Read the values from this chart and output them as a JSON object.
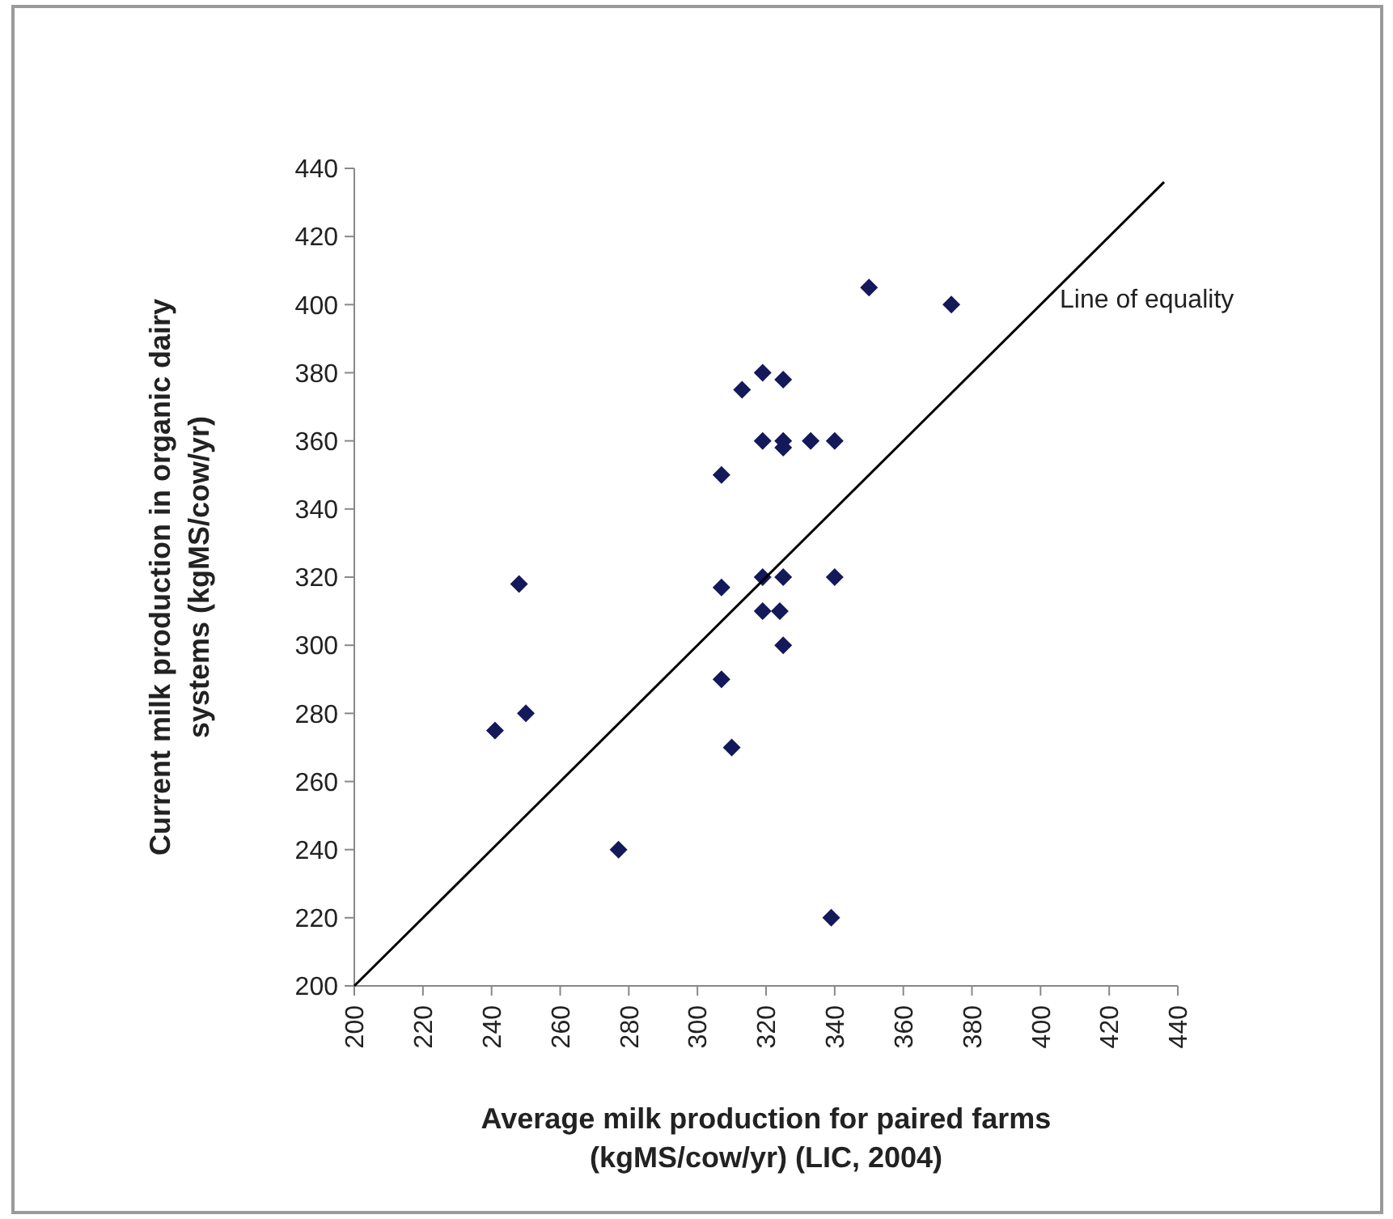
{
  "chart_data": {
    "type": "scatter",
    "xlabel": "Average milk production for paired farms\n(kgMS/cow/yr) (LIC, 2004)",
    "ylabel": "Current milk production in organic dairy\nsystems (kgMS/cow/yr)",
    "xlim": [
      200,
      440
    ],
    "ylim": [
      200,
      440
    ],
    "xticks": [
      200,
      220,
      240,
      260,
      280,
      300,
      320,
      340,
      360,
      380,
      400,
      420,
      440
    ],
    "yticks": [
      200,
      220,
      240,
      260,
      280,
      300,
      320,
      340,
      360,
      380,
      400,
      420,
      440
    ],
    "grid": false,
    "marker": "diamond",
    "series": [
      {
        "color": "#14195a",
        "x": [
          241,
          250,
          277,
          307,
          310,
          325,
          248,
          307,
          307,
          313,
          319,
          325,
          319,
          325,
          325,
          333,
          340,
          319,
          325,
          340,
          319,
          324,
          350,
          374,
          339
        ],
        "values": [
          275,
          280,
          240,
          290,
          270,
          300,
          318,
          317,
          350,
          375,
          380,
          378,
          360,
          360,
          358,
          360,
          360,
          320,
          320,
          320,
          310,
          310,
          405,
          400,
          220
        ]
      },
      {
        "type": "line",
        "color": "#000000",
        "marker": "none",
        "line_style": "solid",
        "x": [
          200,
          436
        ],
        "values": [
          200,
          436
        ]
      }
    ],
    "annotations": [
      "Line of equality"
    ]
  }
}
